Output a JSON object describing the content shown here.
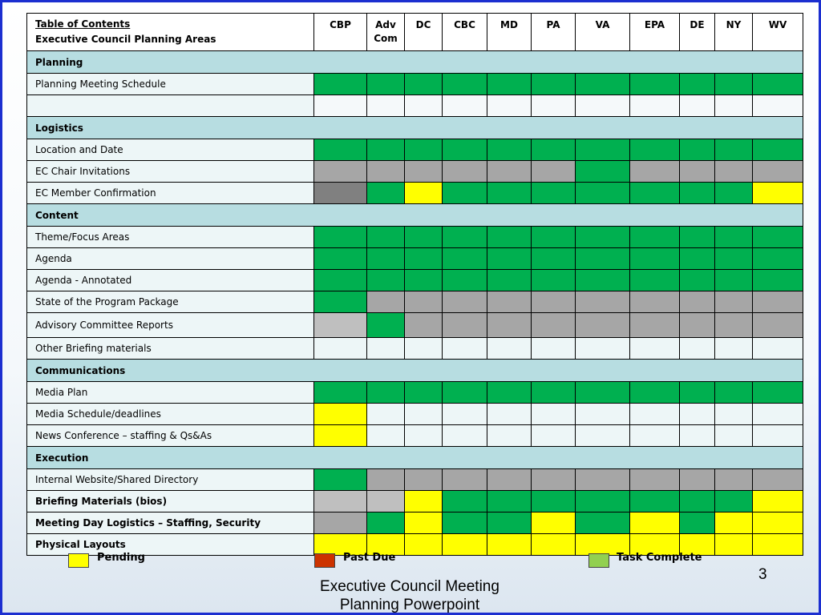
{
  "header": {
    "title": "Table of Contents",
    "subtitle": "Executive Council Planning Areas",
    "columns": [
      "CBP",
      "Adv\nCom",
      "DC",
      "CBC",
      "MD",
      "PA",
      "VA",
      "EPA",
      "DE",
      "NY",
      "WV"
    ]
  },
  "rows": [
    {
      "type": "section",
      "label": "Planning"
    },
    {
      "type": "item",
      "label": "Planning Meeting Schedule",
      "bold": false,
      "cells": [
        "G",
        "G",
        "G",
        "G",
        "G",
        "G",
        "G",
        "G",
        "G",
        "G",
        "G"
      ]
    },
    {
      "type": "item",
      "label": "",
      "bold": false,
      "cells": [
        "W",
        "W",
        "W",
        "W",
        "W",
        "W",
        "W",
        "W",
        "W",
        "W",
        "W"
      ]
    },
    {
      "type": "section",
      "label": "Logistics"
    },
    {
      "type": "item",
      "label": "Location and Date",
      "bold": false,
      "cells": [
        "G",
        "G",
        "G",
        "G",
        "G",
        "G",
        "G",
        "G",
        "G",
        "G",
        "G"
      ]
    },
    {
      "type": "item",
      "label": "EC Chair Invitations",
      "bold": false,
      "cells": [
        "L",
        "L",
        "L",
        "L",
        "L",
        "L",
        "G",
        "L",
        "L",
        "L",
        "L"
      ]
    },
    {
      "type": "item",
      "label": "EC Member Confirmation",
      "bold": false,
      "cells": [
        "K",
        "G",
        "Y",
        "G",
        "G",
        "G",
        "G",
        "G",
        "G",
        "G",
        "Y"
      ]
    },
    {
      "type": "section",
      "label": "Content"
    },
    {
      "type": "item",
      "label": "Theme/Focus Areas",
      "bold": false,
      "cells": [
        "G",
        "G",
        "G",
        "G",
        "G",
        "G",
        "G",
        "G",
        "G",
        "G",
        "G"
      ]
    },
    {
      "type": "item",
      "label": "Agenda",
      "bold": false,
      "cells": [
        "G",
        "G",
        "G",
        "G",
        "G",
        "G",
        "G",
        "G",
        "G",
        "G",
        "G"
      ]
    },
    {
      "type": "item",
      "label": "Agenda - Annotated",
      "bold": false,
      "cells": [
        "G",
        "G",
        "G",
        "G",
        "G",
        "G",
        "G",
        "G",
        "G",
        "G",
        "G"
      ]
    },
    {
      "type": "item",
      "label": "State of the Program Package",
      "bold": false,
      "cells": [
        "G",
        "L",
        "L",
        "L",
        "L",
        "L",
        "L",
        "L",
        "L",
        "L",
        "L"
      ]
    },
    {
      "type": "item",
      "label": "Advisory Committee Reports",
      "bold": false,
      "tall": true,
      "cells": [
        "S",
        "G",
        "L",
        "L",
        "L",
        "L",
        "L",
        "L",
        "L",
        "L",
        "L"
      ]
    },
    {
      "type": "item",
      "label": "Other Briefing materials",
      "bold": false,
      "cells": [
        "E",
        "E",
        "E",
        "E",
        "E",
        "E",
        "E",
        "E",
        "E",
        "E",
        "E"
      ]
    },
    {
      "type": "section",
      "label": "Communications"
    },
    {
      "type": "item",
      "label": "Media Plan",
      "bold": false,
      "cells": [
        "G",
        "G",
        "G",
        "G",
        "G",
        "G",
        "G",
        "G",
        "G",
        "G",
        "G"
      ]
    },
    {
      "type": "item",
      "label": "Media Schedule/deadlines",
      "bold": false,
      "cells": [
        "Y",
        "E",
        "E",
        "E",
        "E",
        "E",
        "E",
        "E",
        "E",
        "E",
        "E"
      ]
    },
    {
      "type": "item",
      "label": "News Conference – staffing & Qs&As",
      "bold": false,
      "cells": [
        "Y",
        "E",
        "E",
        "E",
        "E",
        "E",
        "E",
        "E",
        "E",
        "E",
        "E"
      ]
    },
    {
      "type": "section",
      "label": "Execution"
    },
    {
      "type": "item",
      "label": "Internal Website/Shared Directory",
      "bold": false,
      "cells": [
        "G",
        "L",
        "L",
        "L",
        "L",
        "L",
        "L",
        "L",
        "L",
        "L",
        "L"
      ]
    },
    {
      "type": "item",
      "label": "Briefing Materials (bios)",
      "bold": true,
      "cells": [
        "S",
        "S",
        "Y",
        "G",
        "G",
        "G",
        "G",
        "G",
        "G",
        "G",
        "Y"
      ]
    },
    {
      "type": "item",
      "label": "Meeting Day Logistics – Staffing, Security",
      "bold": true,
      "cells": [
        "L",
        "G",
        "Y",
        "G",
        "G",
        "Y",
        "G",
        "Y",
        "G",
        "Y",
        "Y"
      ]
    },
    {
      "type": "item",
      "label": "Physical Layouts",
      "bold": true,
      "cells": [
        "Y",
        "Y",
        "Y",
        "Y",
        "Y",
        "Y",
        "Y",
        "Y",
        "Y",
        "Y",
        "Y"
      ]
    }
  ],
  "status_colors": {
    "G": "#00b050",
    "Y": "#ffff00",
    "L": "#a6a6a6",
    "K": "#808080",
    "S": "#bfbfbf",
    "E": "#edf6f7",
    "W": "#f5f9fa"
  },
  "legend": {
    "pending": "Pending",
    "past_due": "Past Due",
    "task_complete": "Task Complete"
  },
  "legend_colors": {
    "pending": "#ffff00",
    "past_due": "#cc3300",
    "task_complete": "#92d050"
  },
  "footer": {
    "line1": "Executive Council Meeting",
    "line2": "Planning Powerpoint"
  },
  "page_number": "3"
}
